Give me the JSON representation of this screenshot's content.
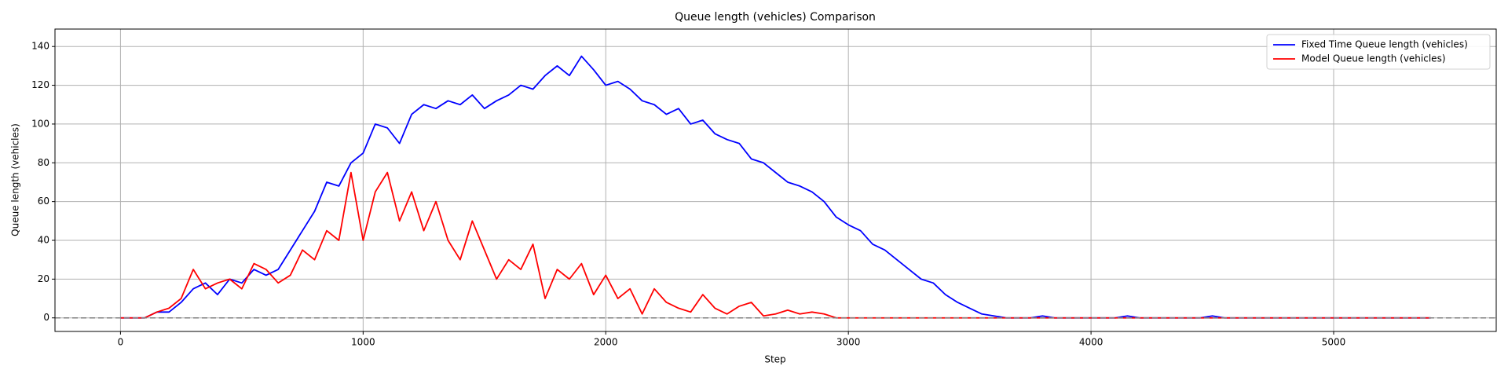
{
  "chart_data": {
    "type": "line",
    "title": "Queue length (vehicles) Comparison",
    "x_label": "Step",
    "y_label": "Queue length (vehicles)",
    "x": [
      0,
      50,
      100,
      150,
      200,
      250,
      300,
      350,
      400,
      450,
      500,
      550,
      600,
      650,
      700,
      750,
      800,
      850,
      900,
      950,
      1000,
      1050,
      1100,
      1150,
      1200,
      1250,
      1300,
      1350,
      1400,
      1450,
      1500,
      1550,
      1600,
      1650,
      1700,
      1750,
      1800,
      1850,
      1900,
      1950,
      2000,
      2050,
      2100,
      2150,
      2200,
      2250,
      2300,
      2350,
      2400,
      2450,
      2500,
      2550,
      2600,
      2650,
      2700,
      2750,
      2800,
      2850,
      2900,
      2950,
      3000,
      3050,
      3100,
      3150,
      3200,
      3250,
      3300,
      3350,
      3400,
      3450,
      3500,
      3550,
      3600,
      3650,
      3700,
      3750,
      3800,
      3850,
      3900,
      3950,
      4000,
      4050,
      4100,
      4150,
      4200,
      4250,
      4300,
      4350,
      4400,
      4450,
      4500,
      4550,
      4600,
      4650,
      4700,
      4750,
      4800,
      4850,
      4900,
      4950,
      5000,
      5050,
      5100,
      5150,
      5200,
      5250,
      5300,
      5350,
      5400
    ],
    "series": [
      {
        "name": "Fixed Time Queue length (vehicles)",
        "color": "#0000ff",
        "values": [
          0,
          0,
          0,
          3,
          3,
          8,
          15,
          18,
          12,
          20,
          18,
          25,
          22,
          25,
          35,
          45,
          55,
          70,
          68,
          80,
          85,
          100,
          98,
          90,
          105,
          110,
          108,
          112,
          110,
          115,
          108,
          112,
          115,
          120,
          118,
          125,
          130,
          125,
          135,
          128,
          120,
          122,
          118,
          112,
          110,
          105,
          108,
          100,
          102,
          95,
          92,
          90,
          82,
          80,
          75,
          70,
          68,
          65,
          60,
          52,
          48,
          45,
          38,
          35,
          30,
          25,
          20,
          18,
          12,
          8,
          5,
          2,
          1,
          0,
          0,
          0,
          1,
          0,
          0,
          0,
          0,
          0,
          0,
          1,
          0,
          0,
          0,
          0,
          0,
          0,
          1,
          0,
          0,
          0,
          0,
          0,
          0,
          0,
          0,
          0,
          0,
          0,
          0,
          0,
          0,
          0,
          0,
          0,
          0
        ]
      },
      {
        "name": "Model Queue length (vehicles)",
        "color": "#ff0000",
        "values": [
          0,
          0,
          0,
          3,
          5,
          10,
          25,
          15,
          18,
          20,
          15,
          28,
          25,
          18,
          22,
          35,
          30,
          45,
          40,
          75,
          40,
          65,
          75,
          50,
          65,
          45,
          60,
          40,
          30,
          50,
          35,
          20,
          30,
          25,
          38,
          10,
          25,
          20,
          28,
          12,
          22,
          10,
          15,
          2,
          15,
          8,
          5,
          3,
          12,
          5,
          2,
          6,
          8,
          1,
          2,
          4,
          2,
          3,
          2,
          0,
          0,
          0,
          0,
          0,
          0,
          0,
          0,
          0,
          0,
          0,
          0,
          0,
          0,
          0,
          0,
          0,
          0,
          0,
          0,
          0,
          0,
          0,
          0,
          0,
          0,
          0,
          0,
          0,
          0,
          0,
          0,
          0,
          0,
          0,
          0,
          0,
          0,
          0,
          0,
          0,
          0,
          0,
          0,
          0,
          0,
          0,
          0,
          0,
          0
        ]
      }
    ],
    "xlim": [
      -270,
      5670
    ],
    "ylim": [
      -7,
      149
    ],
    "xticks": [
      0,
      1000,
      2000,
      3000,
      4000,
      5000
    ],
    "yticks": [
      0,
      20,
      40,
      60,
      80,
      100,
      120,
      140
    ],
    "hline": 0,
    "hline_color": "#808080",
    "grid": true,
    "legend": "upper-right"
  }
}
